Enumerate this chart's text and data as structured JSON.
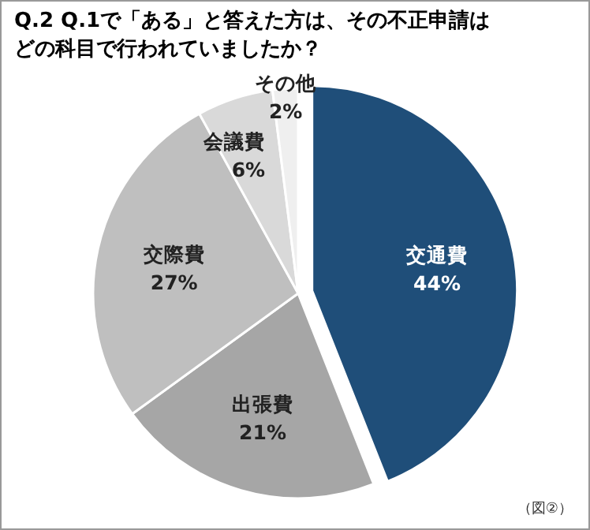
{
  "chart_data": {
    "type": "pie",
    "title": "Q.2  Q.1で「ある」と答えた方は、その不正申請はどの科目で行われていましたか？",
    "categories": [
      "交通費",
      "出張費",
      "交際費",
      "会議費",
      "その他"
    ],
    "values": [
      44,
      21,
      27,
      6,
      2
    ],
    "colors": [
      "#1f4e79",
      "#a6a6a6",
      "#bfbfbf",
      "#d9d9d9",
      "#efefef"
    ],
    "value_labels": [
      "44%",
      "21%",
      "27%",
      "6%",
      "2%"
    ],
    "legend": false,
    "annotations": [
      "（図②）"
    ]
  }
}
